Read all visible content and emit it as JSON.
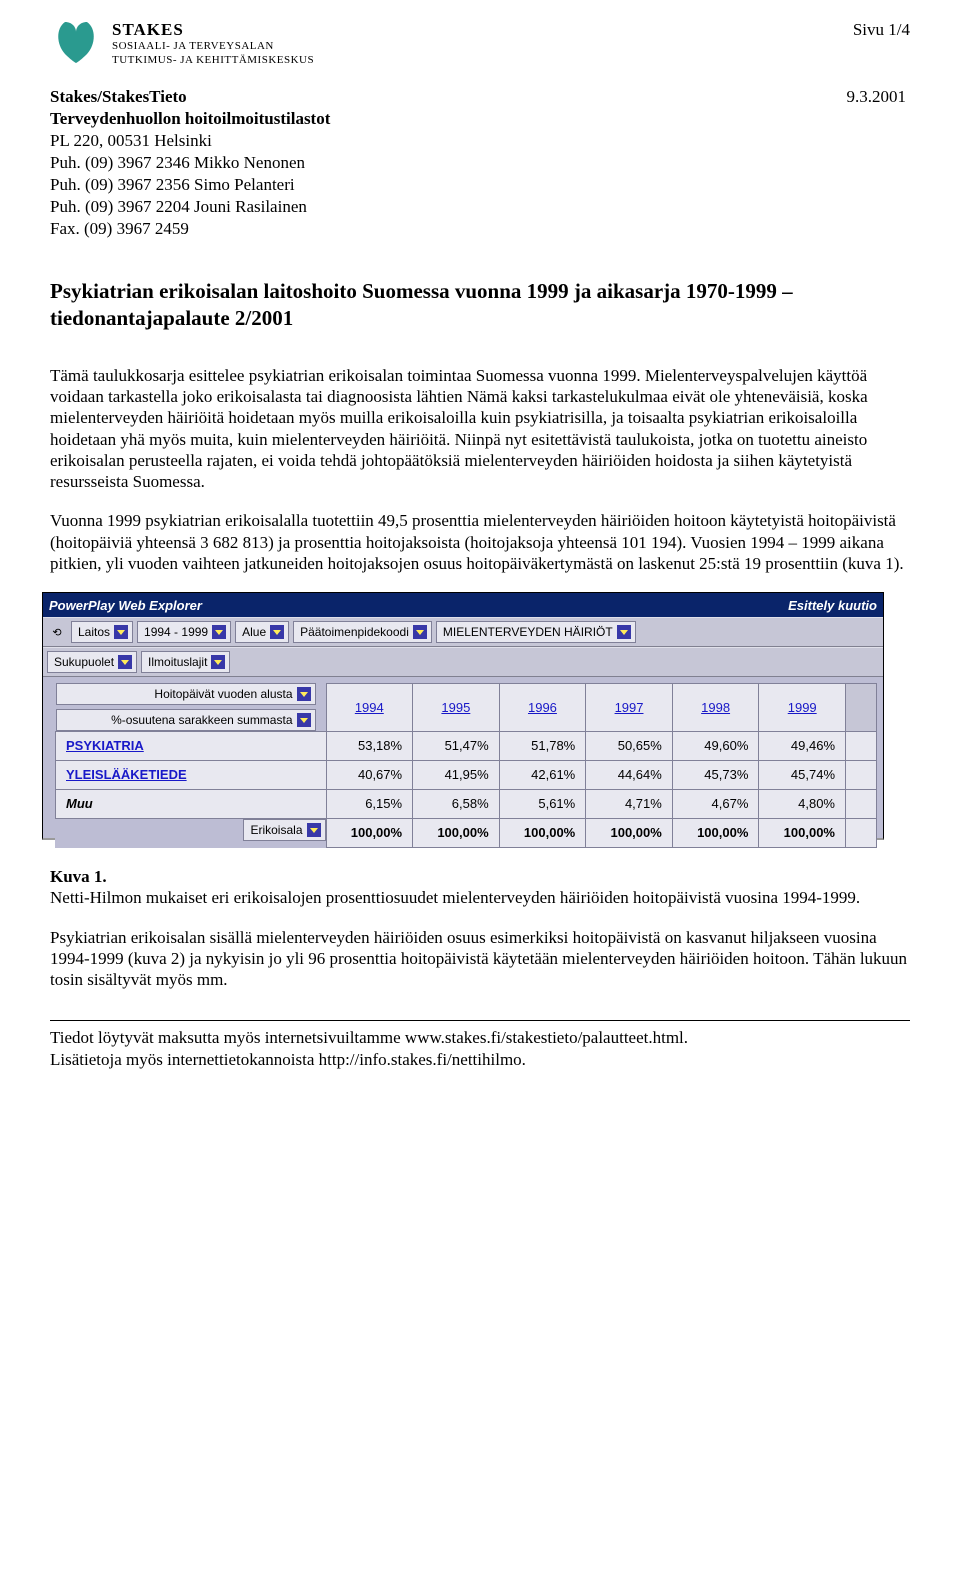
{
  "page_indicator": "Sivu 1/4",
  "org": {
    "name": "STAKES",
    "sub1": "SOSIAALI- JA TERVEYSALAN",
    "sub2": "TUTKIMUS- JA KEHITTÄMISKESKUS"
  },
  "source": {
    "title": "Stakes/StakesTieto",
    "date": "9.3.2001",
    "line2": "Terveydenhuollon hoitoilmoitustilastot",
    "line3": "PL 220, 00531 Helsinki",
    "line4": "Puh. (09) 3967 2346 Mikko Nenonen",
    "line5": "Puh. (09) 3967 2356 Simo Pelanteri",
    "line6": "Puh. (09) 3967 2204 Jouni Rasilainen",
    "line7": "Fax. (09) 3967 2459"
  },
  "doc_title": "Psykiatrian erikoisalan laitoshoito Suomessa vuonna 1999 ja aikasarja 1970-1999 – tiedonantajapalaute 2/2001",
  "para1": "Tämä taulukkosarja esittelee psykiatrian erikoisalan toimintaa Suomessa vuonna 1999. Mielenterveyspalvelujen käyttöä voidaan tarkastella joko erikoisalasta tai diagnoosista lähtien Nämä kaksi tarkastelukulmaa eivät ole yhteneväisiä, koska mielenterveyden häiriöitä hoidetaan myös muilla erikoisaloilla kuin psykiatrisilla, ja toisaalta psykiatrian erikoisaloilla hoidetaan yhä myös muita, kuin mielenterveyden häiriöitä. Niinpä nyt esitettävistä taulukoista, jotka on tuotettu aineisto erikoisalan perusteella rajaten, ei voida tehdä johtopäätöksiä mielenterveyden häiriöiden hoidosta ja siihen käytetyistä resursseista Suomessa.",
  "para2": "Vuonna 1999 psykiatrian erikoisalalla tuotettiin 49,5 prosenttia mielenterveyden häiriöiden hoitoon käytetyistä hoitopäivistä (hoitopäiviä yhteensä 3 682 813) ja  prosenttia hoitojaksoista (hoitojaksoja yhteensä 101 194). Vuosien 1994 – 1999 aikana pitkien, yli vuoden vaihteen jatkuneiden hoitojaksojen osuus hoitopäiväkertymästä on laskenut 25:stä 19 prosenttiin (kuva 1).",
  "powerplay": {
    "app": "PowerPlay Web Explorer",
    "window_right": "Esittely kuutio",
    "dims_row1": [
      "Laitos",
      "1994 - 1999",
      "Alue",
      "Päätoimenpidekoodi",
      "MIELENTERVEYDEN HÄIRIÖT"
    ],
    "dims_row2": [
      "Sukupuolet",
      "Ilmoituslajit"
    ],
    "side_dims": [
      "Hoitopäivät vuoden alusta",
      "%-osuutena sarakkeen summasta"
    ],
    "bottom_dim": "Erikoisala",
    "years": [
      "1994",
      "1995",
      "1996",
      "1997",
      "1998",
      "1999"
    ],
    "rows": [
      {
        "label": "PSYKIATRIA",
        "vals": [
          "53,18%",
          "51,47%",
          "51,78%",
          "50,65%",
          "49,60%",
          "49,46%"
        ],
        "cls": ""
      },
      {
        "label": "YLEISLÄÄKETIEDE",
        "vals": [
          "40,67%",
          "41,95%",
          "42,61%",
          "44,64%",
          "45,73%",
          "45,74%"
        ],
        "cls": ""
      },
      {
        "label": "Muu",
        "vals": [
          "6,15%",
          "6,58%",
          "5,61%",
          "4,71%",
          "4,67%",
          "4,80%"
        ],
        "cls": "muu"
      }
    ],
    "totals": [
      "100,00%",
      "100,00%",
      "100,00%",
      "100,00%",
      "100,00%",
      "100,00%"
    ]
  },
  "caption": {
    "label": "Kuva 1.",
    "text": "Netti-Hilmon mukaiset eri erikoisalojen prosenttiosuudet mielenterveyden häiriöiden hoitopäivistä vuosina 1994-1999."
  },
  "para3": "Psykiatrian erikoisalan sisällä mielenterveyden häiriöiden osuus esimerkiksi hoitopäivistä on kasvanut hiljakseen vuosina 1994-1999 (kuva 2) ja nykyisin jo yli 96 prosenttia hoitopäivistä käytetään mielenterveyden häiriöiden hoitoon. Tähän lukuun tosin sisältyvät myös mm.",
  "footer": {
    "line1": "Tiedot löytyvät maksutta myös internetsivuiltamme www.stakes.fi/stakestieto/palautteet.html.",
    "line2": "Lisätietoja myös internettietokannoista http://info.stakes.fi/nettihilmo."
  },
  "colors": {
    "pp_title_bg": "#0a246a",
    "pp_toolbar_bg": "#c6c6d6",
    "pp_content_bg": "#bdbdd4",
    "pp_cell_bg": "#e8e8f0",
    "link_color": "#1818c8",
    "logo_color": "#2a9a8f"
  }
}
